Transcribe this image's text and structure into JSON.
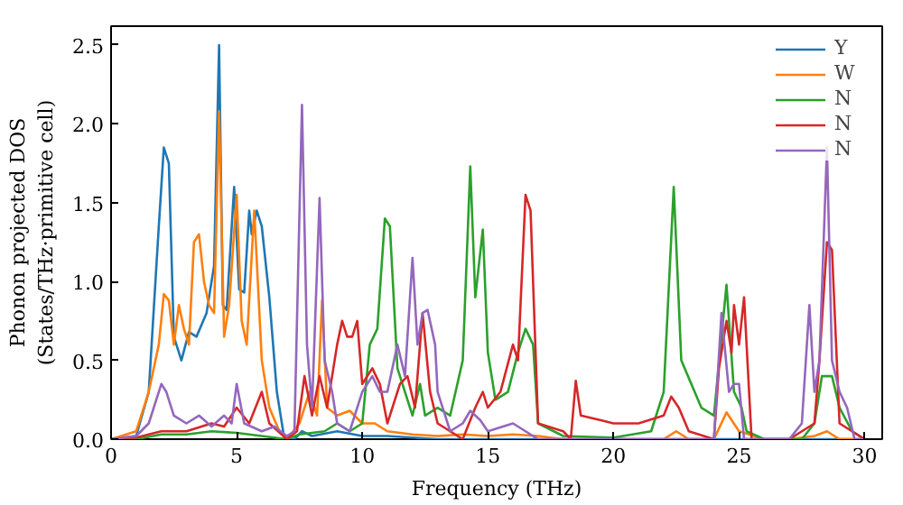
{
  "chart_data": {
    "type": "line",
    "xlabel": "Frequency (THz)",
    "ylabel": "Phonon projected DOS\n(States/THz·primitive cell)",
    "xlim": [
      0,
      30.7
    ],
    "ylim": [
      0,
      2.62
    ],
    "xticks": [
      0,
      5,
      10,
      15,
      20,
      25,
      30
    ],
    "yticks": [
      {
        "value": 0,
        "label": "0.0"
      },
      0.5,
      {
        "value": 1,
        "label": "1.0"
      },
      1.5,
      {
        "value": 2,
        "label": "2.0"
      },
      2.5
    ],
    "grid": false,
    "legend": "top right",
    "marker": "none",
    "line_style": "solid",
    "series": [
      {
        "name": "Y",
        "color": "#1f77b4",
        "x": [
          0,
          1,
          1.5,
          1.9,
          2.1,
          2.3,
          2.5,
          2.8,
          3.1,
          3.4,
          3.8,
          4.1,
          4.3,
          4.45,
          4.6,
          4.9,
          5.1,
          5.3,
          5.5,
          5.6,
          5.8,
          6.0,
          6.3,
          6.6,
          6.9,
          7.3,
          7.6,
          8,
          9,
          10,
          11,
          12,
          13,
          15,
          17,
          20,
          23,
          25,
          30
        ],
        "values": [
          0,
          0.02,
          0.3,
          1.35,
          1.85,
          1.75,
          0.65,
          0.5,
          0.68,
          0.65,
          0.8,
          1.1,
          2.5,
          0.85,
          0.82,
          1.6,
          0.95,
          0.93,
          1.45,
          1.3,
          1.45,
          1.35,
          0.9,
          0.3,
          0,
          0,
          0.05,
          0.02,
          0.05,
          0.02,
          0.02,
          0.01,
          0,
          0,
          0,
          0,
          0,
          0,
          0
        ]
      },
      {
        "name": "W",
        "color": "#ff7f0e",
        "x": [
          0,
          1,
          1.5,
          1.9,
          2.1,
          2.3,
          2.5,
          2.7,
          2.9,
          3.1,
          3.3,
          3.5,
          3.7,
          3.9,
          4.1,
          4.3,
          4.5,
          4.7,
          5.0,
          5.2,
          5.4,
          5.7,
          6.0,
          6.3,
          6.7,
          7.0,
          7.5,
          7.9,
          8.2,
          8.4,
          8.6,
          9,
          9.5,
          10,
          10.5,
          11,
          12,
          13,
          14,
          15,
          16,
          17,
          18,
          22,
          22.5,
          23,
          24,
          24.5,
          25,
          26,
          27,
          28,
          28.5,
          29,
          30
        ],
        "values": [
          0,
          0.05,
          0.3,
          0.6,
          0.92,
          0.88,
          0.6,
          0.85,
          0.7,
          0.6,
          1.25,
          1.3,
          1.0,
          0.85,
          0.8,
          2.08,
          0.65,
          0.85,
          1.55,
          0.75,
          0.6,
          1.45,
          0.5,
          0.2,
          0.05,
          0,
          0.1,
          0.3,
          0.15,
          0.88,
          0.2,
          0.15,
          0.18,
          0.1,
          0.1,
          0.05,
          0.03,
          0.02,
          0.03,
          0.02,
          0.03,
          0.02,
          0,
          0,
          0.05,
          0,
          0,
          0.17,
          0.05,
          0,
          0,
          0.02,
          0.05,
          0,
          0
        ]
      },
      {
        "name": "N",
        "color": "#2ca02c",
        "x": [
          0,
          1,
          2,
          3,
          4,
          5,
          6,
          7,
          7.5,
          8.5,
          9,
          9.5,
          10,
          10.3,
          10.6,
          10.9,
          11.1,
          11.4,
          11.7,
          12,
          12.3,
          12.5,
          13,
          13.5,
          14,
          14.3,
          14.5,
          14.8,
          15,
          15.3,
          15.8,
          16.2,
          16.5,
          16.8,
          17,
          18,
          20,
          21.5,
          22,
          22.4,
          22.7,
          23.5,
          24,
          24.5,
          24.8,
          25.1,
          25.3,
          26,
          27.5,
          28,
          28.3,
          28.7,
          29,
          29.5,
          30
        ],
        "values": [
          0,
          0,
          0.03,
          0.03,
          0.05,
          0.04,
          0.02,
          0,
          0.03,
          0.05,
          0.1,
          0.05,
          0.1,
          0.6,
          0.7,
          1.4,
          1.35,
          0.45,
          0.3,
          0.15,
          0.35,
          0.15,
          0.2,
          0.15,
          0.5,
          1.73,
          0.9,
          1.33,
          0.55,
          0.25,
          0.3,
          0.55,
          0.7,
          0.6,
          0.1,
          0.02,
          0.01,
          0.05,
          0.3,
          1.6,
          0.5,
          0.2,
          0.15,
          0.98,
          0.3,
          0.2,
          0.05,
          0,
          0,
          0.1,
          0.4,
          0.4,
          0.2,
          0.05,
          0
        ]
      },
      {
        "name": "N",
        "color": "#d62728",
        "x": [
          0,
          1,
          2,
          3,
          4,
          4.5,
          5,
          5.5,
          6,
          6.3,
          7,
          7.4,
          7.7,
          8,
          8.3,
          8.6,
          9,
          9.2,
          9.4,
          9.6,
          9.8,
          10,
          10.4,
          10.7,
          11,
          11.5,
          11.8,
          12.1,
          12.4,
          12.7,
          13,
          13.5,
          14,
          14.5,
          14.8,
          15,
          15.5,
          16,
          16.2,
          16.5,
          16.7,
          17,
          18,
          18.3,
          18.5,
          18.7,
          19.5,
          20,
          21,
          22,
          22.3,
          22.6,
          23,
          24,
          24.2,
          24.5,
          24.7,
          24.8,
          25,
          25.2,
          25.5,
          27,
          28,
          28.2,
          28.5,
          28.7,
          29,
          30
        ],
        "values": [
          0,
          0.01,
          0.05,
          0.05,
          0.1,
          0.08,
          0.2,
          0.1,
          0.3,
          0.1,
          0,
          0.05,
          0.4,
          0.15,
          0.4,
          0.2,
          0.6,
          0.75,
          0.65,
          0.65,
          0.75,
          0.35,
          0.45,
          0.35,
          0.1,
          0.35,
          0.4,
          0.2,
          0.8,
          0.3,
          0.1,
          0.05,
          0,
          0.2,
          0.3,
          0.2,
          0.3,
          0.6,
          0.5,
          1.55,
          1.45,
          0.1,
          0.05,
          0,
          0.37,
          0.15,
          0.12,
          0.1,
          0.1,
          0.15,
          0.27,
          0.2,
          0.05,
          0,
          0.45,
          0.75,
          0.55,
          0.85,
          0.6,
          0.9,
          0,
          0,
          0.1,
          0.5,
          1.25,
          1.2,
          0.1,
          0
        ]
      },
      {
        "name": "N",
        "color": "#9467bd",
        "x": [
          0,
          1,
          1.5,
          2,
          2.2,
          2.5,
          3,
          3.5,
          4,
          4.5,
          4.8,
          5.0,
          5.3,
          6,
          6.5,
          7,
          7.3,
          7.6,
          7.8,
          8,
          8.3,
          8.5,
          8.8,
          9,
          9.5,
          10,
          10.4,
          10.7,
          11,
          11.4,
          11.7,
          12,
          12.2,
          12.4,
          12.6,
          12.9,
          13,
          13.5,
          14,
          14.3,
          14.7,
          15,
          16,
          16.5,
          17,
          24,
          24.3,
          24.6,
          24.8,
          25,
          25.2,
          27,
          27.5,
          27.8,
          28,
          28.2,
          28.5,
          28.7,
          29,
          29.3,
          29.6,
          30
        ],
        "values": [
          0,
          0.02,
          0.1,
          0.35,
          0.3,
          0.15,
          0.1,
          0.15,
          0.08,
          0.15,
          0.1,
          0.35,
          0.1,
          0.05,
          0.08,
          0.02,
          0.05,
          2.12,
          0.6,
          0.2,
          1.53,
          0.5,
          0.3,
          0.1,
          0.05,
          0.3,
          0.4,
          0.3,
          0.3,
          0.6,
          0.4,
          1.15,
          0.6,
          0.8,
          0.82,
          0.6,
          0.3,
          0.05,
          0.1,
          0.18,
          0.12,
          0.05,
          0.1,
          0.05,
          0,
          0,
          0.8,
          0.3,
          0.35,
          0.35,
          0,
          0,
          0.1,
          0.85,
          0.3,
          0.5,
          1.85,
          0.5,
          0.3,
          0.2,
          0,
          0
        ]
      }
    ]
  }
}
